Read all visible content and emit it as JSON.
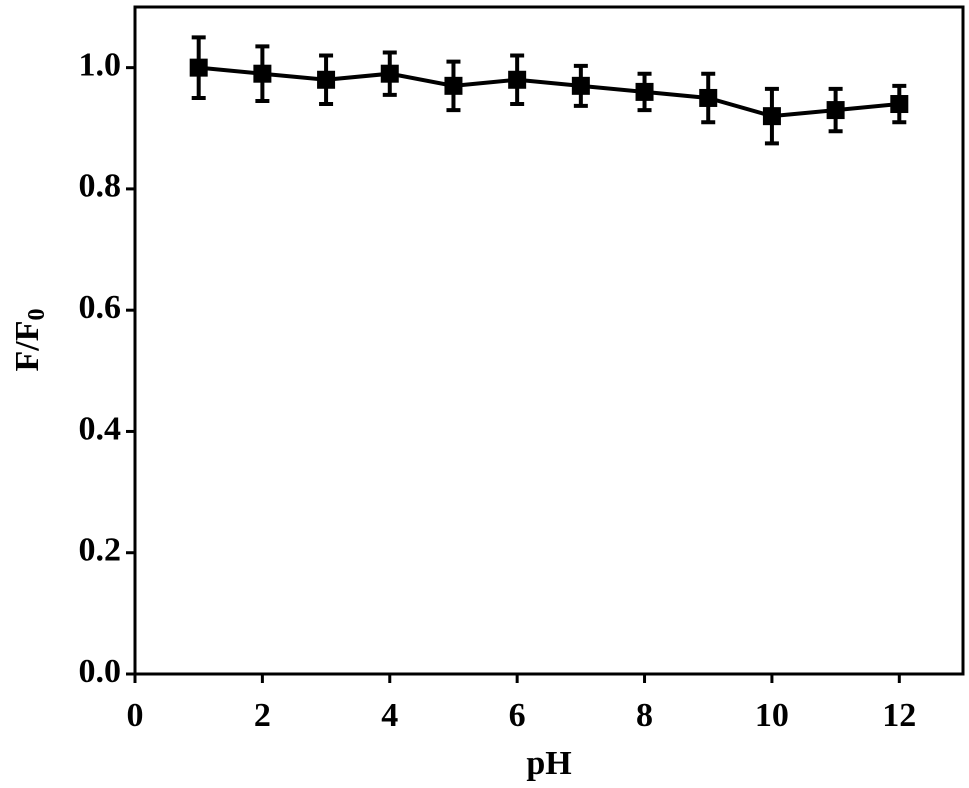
{
  "chart_data": {
    "type": "line",
    "x_label": "pH",
    "y_label": {
      "text": "F/F",
      "subscript": "0"
    },
    "x": [
      1,
      2,
      3,
      4,
      5,
      6,
      7,
      8,
      9,
      10,
      11,
      12
    ],
    "series": [
      {
        "color": "#000000",
        "values": [
          1.0,
          0.99,
          0.98,
          0.99,
          0.97,
          0.98,
          0.97,
          0.96,
          0.95,
          0.92,
          0.93,
          0.94
        ],
        "errors": [
          0.05,
          0.045,
          0.04,
          0.035,
          0.04,
          0.04,
          0.033,
          0.03,
          0.04,
          0.045,
          0.035,
          0.03
        ]
      }
    ],
    "xlim": [
      0,
      13
    ],
    "xticks": [
      0,
      2,
      4,
      6,
      8,
      10,
      12
    ],
    "ylim": [
      0,
      1.1
    ],
    "yticks": [
      {
        "value": 0,
        "label": "0.0"
      },
      0.2,
      0.4,
      0.6,
      0.8,
      {
        "value": 1,
        "label": "1.0"
      }
    ]
  }
}
